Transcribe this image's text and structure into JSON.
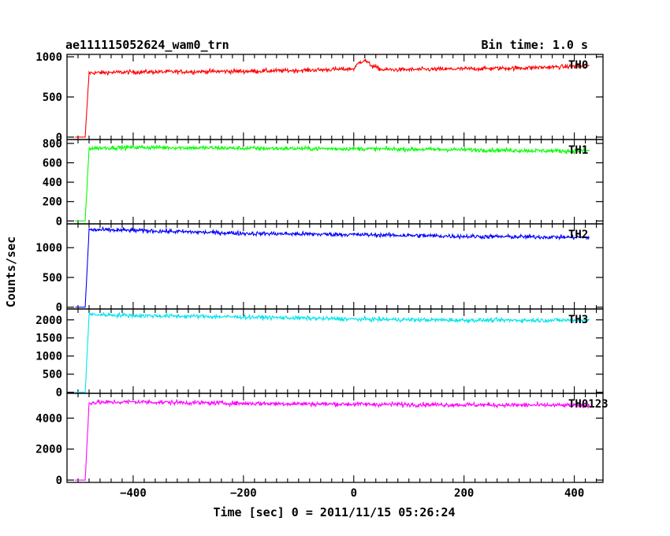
{
  "header": {
    "title": "ae111115052624_wam0_trn",
    "bin_time": "Bin time: 1.0 s"
  },
  "chart_data": {
    "type": "line",
    "title": "ae111115052624_wam0_trn",
    "xlabel": "Time [sec] 0 = 2011/11/15 05:26:24",
    "ylabel": "Counts/sec",
    "xlim": [
      -520,
      452
    ],
    "x_ticks": [
      -400,
      -200,
      0,
      200,
      400
    ],
    "x_tick_labels": [
      "−400",
      "−200",
      "0",
      "200",
      "400"
    ],
    "grid": false,
    "onset_time": -487,
    "end_time": 427,
    "panels": [
      {
        "name": "TH0",
        "color": "#ff0000",
        "ylim": [
          -30,
          1030
        ],
        "y_ticks": [
          0,
          500,
          1000
        ],
        "y_tick_labels": [
          "0",
          "500",
          "1000"
        ],
        "baseline": 0,
        "x": [
          -505,
          -487,
          -480,
          -400,
          -300,
          -200,
          -100,
          0,
          10,
          20,
          30,
          50,
          100,
          200,
          300,
          400,
          427
        ],
        "y": [
          0,
          0,
          800,
          810,
          815,
          820,
          830,
          850,
          930,
          960,
          900,
          840,
          840,
          850,
          860,
          880,
          890
        ]
      },
      {
        "name": "TH1",
        "color": "#00ff00",
        "ylim": [
          -30,
          840
        ],
        "y_ticks": [
          0,
          200,
          400,
          600,
          800
        ],
        "y_tick_labels": [
          "0",
          "200",
          "400",
          "600",
          "800"
        ],
        "baseline": 0,
        "x": [
          -505,
          -487,
          -480,
          -400,
          -200,
          0,
          200,
          400,
          427
        ],
        "y": [
          0,
          0,
          750,
          760,
          750,
          745,
          735,
          720,
          725
        ]
      },
      {
        "name": "TH2",
        "color": "#0000ff",
        "ylim": [
          -30,
          1400
        ],
        "y_ticks": [
          0,
          500,
          1000
        ],
        "y_tick_labels": [
          "0",
          "500",
          "1000"
        ],
        "baseline": 0,
        "x": [
          -505,
          -487,
          -480,
          -400,
          -200,
          0,
          200,
          400,
          427
        ],
        "y": [
          0,
          0,
          1300,
          1290,
          1240,
          1220,
          1190,
          1175,
          1170
        ]
      },
      {
        "name": "TH3",
        "color": "#00e5ee",
        "ylim": [
          -30,
          2300
        ],
        "y_ticks": [
          0,
          500,
          1000,
          1500,
          2000
        ],
        "y_tick_labels": [
          "0",
          "500",
          "1000",
          "1500",
          "2000"
        ],
        "baseline": 0,
        "x": [
          -505,
          -487,
          -480,
          -400,
          -200,
          0,
          200,
          400,
          427
        ],
        "y": [
          0,
          0,
          2150,
          2120,
          2080,
          2020,
          1990,
          1990,
          2000
        ]
      },
      {
        "name": "TH0123",
        "color": "#ff00ff",
        "ylim": [
          -150,
          5600
        ],
        "y_ticks": [
          0,
          2000,
          4000
        ],
        "y_tick_labels": [
          "0",
          "2000",
          "4000"
        ],
        "baseline": 0,
        "x": [
          -505,
          -487,
          -480,
          -400,
          -200,
          0,
          200,
          400,
          427
        ],
        "y": [
          0,
          0,
          5000,
          5050,
          4950,
          4900,
          4860,
          4820,
          4830
        ]
      }
    ]
  }
}
